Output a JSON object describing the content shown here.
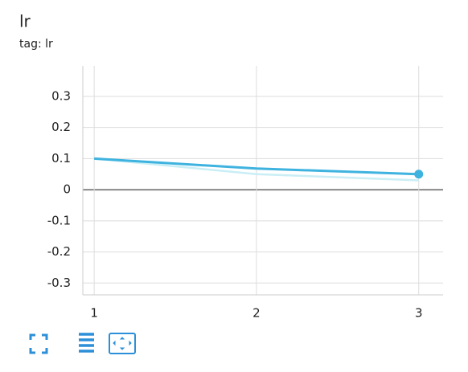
{
  "chart_data": {
    "type": "line",
    "title": "lr",
    "subtitle": "tag: lr",
    "x": [
      1,
      2,
      3
    ],
    "series": [
      {
        "color": "#c9eef5",
        "values": [
          0.1,
          0.05,
          0.03
        ]
      },
      {
        "color": "#3fb3df",
        "values": [
          0.1,
          0.068,
          0.05
        ]
      }
    ],
    "xlim": [
      0.93,
      3.15
    ],
    "xticks": [
      1,
      2,
      3
    ],
    "ylim": [
      -0.338,
      0.398
    ],
    "yticks": [
      0.3,
      0.2,
      0.1,
      0,
      -0.1,
      -0.2,
      -0.3
    ],
    "grid": true
  }
}
